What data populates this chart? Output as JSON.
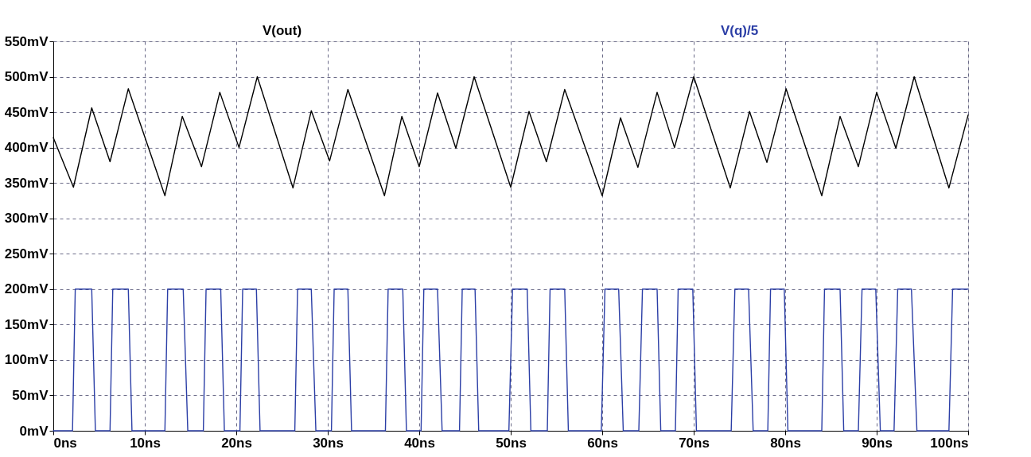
{
  "chart_data": {
    "type": "line",
    "xlim": [
      0,
      100
    ],
    "xticks": [
      {
        "value": 0,
        "label": "0ns"
      },
      {
        "value": 10,
        "label": "10ns"
      },
      {
        "value": 20,
        "label": "20ns"
      },
      {
        "value": 30,
        "label": "30ns"
      },
      {
        "value": 40,
        "label": "40ns"
      },
      {
        "value": 50,
        "label": "50ns"
      },
      {
        "value": 60,
        "label": "60ns"
      },
      {
        "value": 70,
        "label": "70ns"
      },
      {
        "value": 80,
        "label": "80ns"
      },
      {
        "value": 90,
        "label": "90ns"
      },
      {
        "value": 100,
        "label": "100ns"
      }
    ],
    "ylim": [
      0,
      550
    ],
    "yticks": [
      {
        "value": 0,
        "label": "0mV"
      },
      {
        "value": 50,
        "label": "50mV"
      },
      {
        "value": 100,
        "label": "100mV"
      },
      {
        "value": 150,
        "label": "150mV"
      },
      {
        "value": 200,
        "label": "200mV"
      },
      {
        "value": 250,
        "label": "250mV"
      },
      {
        "value": 300,
        "label": "300mV"
      },
      {
        "value": 350,
        "label": "350mV"
      },
      {
        "value": 400,
        "label": "400mV"
      },
      {
        "value": 450,
        "label": "450mV"
      },
      {
        "value": 500,
        "label": "500mV"
      },
      {
        "value": 550,
        "label": "550mV"
      }
    ],
    "grid": true,
    "legend": "top",
    "line_style": "solid",
    "marker": "none",
    "series": [
      {
        "name": "V(out)",
        "color": "#000000",
        "x": [
          0,
          2.2,
          4.2,
          6.2,
          8.2,
          12.2,
          14.1,
          16.2,
          18.2,
          20.3,
          22.3,
          26.2,
          28.2,
          30.2,
          32.2,
          36.2,
          38.1,
          40,
          42,
          44,
          46,
          50,
          52,
          53.9,
          55.9,
          60,
          62,
          63.9,
          66,
          67.9,
          70,
          74,
          76.1,
          78,
          80.1,
          84,
          86,
          88,
          90,
          92.1,
          94.1,
          97.9,
          100
        ],
        "values": [
          414,
          344,
          456,
          380,
          483,
          332,
          444,
          373,
          478,
          400,
          500,
          343,
          452,
          381,
          482,
          332,
          444,
          373,
          477,
          399,
          500,
          344,
          451,
          380,
          482,
          332,
          442,
          372,
          478,
          400,
          500,
          343,
          451,
          379,
          483,
          332,
          444,
          373,
          478,
          399,
          500,
          343,
          446
        ]
      },
      {
        "name": "V(q)/5",
        "color": "#2b3ea6",
        "x": [
          0,
          2.1,
          2.4,
          4.2,
          4.6,
          6.2,
          6.5,
          8.2,
          8.6,
          12.2,
          12.5,
          14.2,
          14.7,
          16.4,
          16.7,
          18.3,
          18.7,
          20.4,
          20.7,
          22.2,
          22.6,
          26.4,
          26.7,
          28.2,
          28.7,
          30.4,
          30.7,
          32.2,
          32.6,
          36.3,
          36.6,
          38.2,
          38.6,
          40.2,
          40.5,
          42,
          42.5,
          44.4,
          44.7,
          46.1,
          46.5,
          49.8,
          50.2,
          51.8,
          52.2,
          54,
          54.3,
          55.9,
          56.3,
          59.9,
          60.3,
          61.8,
          62.3,
          64,
          64.4,
          66,
          66.4,
          68,
          68.3,
          69.9,
          70.3,
          74.1,
          74.5,
          76,
          76.5,
          78.1,
          78.4,
          79.9,
          80.3,
          84,
          84.3,
          86,
          86.4,
          88,
          88.4,
          89.9,
          90.4,
          91.9,
          92.3,
          93.8,
          94.4,
          97.9,
          98.3,
          100
        ],
        "values": [
          0,
          0,
          200,
          200,
          0,
          0,
          200,
          200,
          0,
          0,
          200,
          200,
          0,
          0,
          200,
          200,
          0,
          0,
          200,
          200,
          0,
          0,
          200,
          200,
          0,
          0,
          200,
          200,
          0,
          0,
          200,
          200,
          0,
          0,
          200,
          200,
          0,
          0,
          200,
          200,
          0,
          0,
          200,
          200,
          0,
          0,
          200,
          200,
          0,
          0,
          200,
          200,
          0,
          0,
          200,
          200,
          0,
          0,
          200,
          200,
          0,
          0,
          200,
          200,
          0,
          0,
          200,
          200,
          0,
          0,
          200,
          200,
          0,
          0,
          200,
          200,
          0,
          0,
          200,
          200,
          0,
          0,
          200,
          200
        ]
      }
    ]
  }
}
